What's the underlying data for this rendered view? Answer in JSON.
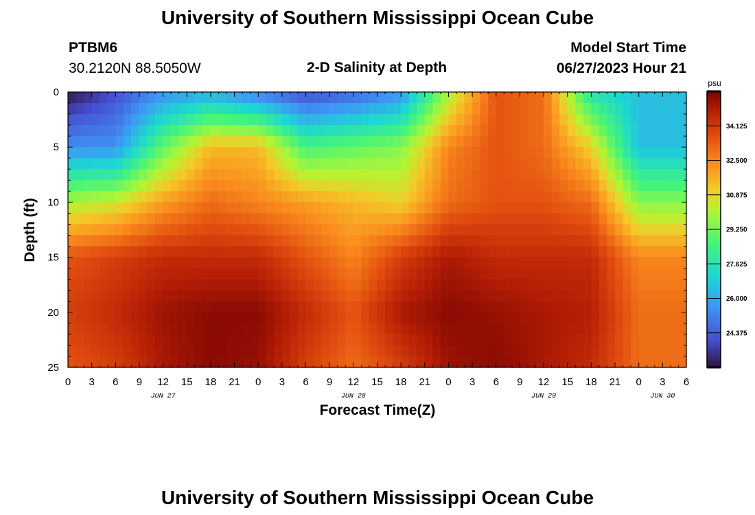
{
  "page": {
    "title": "University of Southern Mississippi Ocean Cube",
    "title_bottom": "University of Southern Mississippi Ocean Cube",
    "station": "PTBM6",
    "coords": "30.2120N  88.5050W",
    "plot_title": "2-D Salinity at Depth",
    "model_start_label": "Model Start Time",
    "model_start_value": "06/27/2023 Hour 21"
  },
  "chart_data": {
    "type": "heatmap",
    "title": "2-D Salinity at Depth",
    "xlabel": "Forecast Time(Z)",
    "ylabel": "Depth (ft)",
    "ylim": [
      0,
      25
    ],
    "y_ticks": [
      "0",
      "5",
      "10",
      "15",
      "20",
      "25"
    ],
    "x_ticks": [
      "0",
      "3",
      "6",
      "9",
      "12",
      "15",
      "18",
      "21",
      "0",
      "3",
      "6",
      "9",
      "12",
      "15",
      "18",
      "21",
      "0",
      "3",
      "6",
      "9",
      "12",
      "15",
      "18",
      "21",
      "0",
      "3",
      "6"
    ],
    "day_labels": [
      "JUN 27",
      "JUN 28",
      "JUN 29",
      "JUN 30"
    ],
    "x_range_hours": [
      0,
      78
    ],
    "colorbar": {
      "unit": "psu",
      "range": [
        22.75,
        35.75
      ],
      "ticks": [
        "34.125",
        "32.500",
        "30.875",
        "29.250",
        "27.625",
        "26.000",
        "24.375"
      ]
    },
    "salinity_field_psu": {
      "depth_ft": [
        0,
        5,
        10,
        15,
        20,
        25
      ],
      "hours": [
        0,
        6,
        12,
        18,
        24,
        30,
        36,
        42,
        48,
        54,
        60,
        66,
        72,
        78
      ],
      "values": [
        [
          22.8,
          24.0,
          25.5,
          26.0,
          25.0,
          24.0,
          24.5,
          25.5,
          30.0,
          33.5,
          33.0,
          27.5,
          26.5,
          26.5
        ],
        [
          25.5,
          25.5,
          29.0,
          31.5,
          31.5,
          28.5,
          29.0,
          29.5,
          32.5,
          33.5,
          33.0,
          31.0,
          26.5,
          26.5
        ],
        [
          30.0,
          30.5,
          32.0,
          33.0,
          32.5,
          32.0,
          31.5,
          31.0,
          33.0,
          33.5,
          33.5,
          33.0,
          29.5,
          29.5
        ],
        [
          33.5,
          34.0,
          34.5,
          34.5,
          34.5,
          33.5,
          32.5,
          34.0,
          35.0,
          34.5,
          34.5,
          34.5,
          32.5,
          32.5
        ],
        [
          34.0,
          34.5,
          35.2,
          35.5,
          35.5,
          34.5,
          33.5,
          35.0,
          35.5,
          35.3,
          35.0,
          34.8,
          33.0,
          33.0
        ],
        [
          33.5,
          34.0,
          35.0,
          35.5,
          35.3,
          34.0,
          33.0,
          34.0,
          35.2,
          35.5,
          35.0,
          34.5,
          33.0,
          33.0
        ]
      ]
    }
  }
}
